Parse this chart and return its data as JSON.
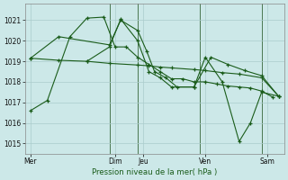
{
  "bg_color": "#cce8e8",
  "grid_color": "#aacccc",
  "line_color": "#1a5c1a",
  "title_label": "Pression niveau de la mer( hPa )",
  "x_ticks_labels": [
    "Mer",
    "Dim",
    "Jeu",
    "Ven",
    "Sam"
  ],
  "x_ticks_pos": [
    0.5,
    8,
    10.5,
    16,
    21.5
  ],
  "ylim": [
    1014.5,
    1021.8
  ],
  "yticks": [
    1015,
    1016,
    1017,
    1018,
    1019,
    1020,
    1021
  ],
  "xlim": [
    0,
    23
  ],
  "vlines_x": [
    7.5,
    10,
    15.5,
    21
  ],
  "series1_x": [
    0.5,
    2,
    4,
    5.5,
    7,
    8,
    9,
    10,
    11,
    12,
    13,
    14,
    15,
    16,
    17,
    18,
    19,
    20,
    21,
    22
  ],
  "series1_y": [
    1016.6,
    1017.1,
    1020.2,
    1021.1,
    1021.15,
    1019.7,
    1019.7,
    1019.2,
    1018.85,
    1018.5,
    1018.15,
    1018.15,
    1018.0,
    1018.0,
    1017.9,
    1017.8,
    1017.75,
    1017.7,
    1017.55,
    1017.25
  ],
  "series2_x": [
    0.5,
    3,
    5.5,
    7.5,
    10,
    11,
    12,
    13,
    15,
    16,
    17.5,
    19,
    21,
    22.5
  ],
  "series2_y": [
    1019.15,
    1019.05,
    1019.0,
    1018.9,
    1018.82,
    1018.78,
    1018.72,
    1018.68,
    1018.6,
    1018.55,
    1018.45,
    1018.38,
    1018.2,
    1017.3
  ],
  "series3_x": [
    0.5,
    3,
    7.5,
    8.5,
    10,
    10.8,
    11.5,
    12.5,
    13.5,
    15,
    16.5,
    18,
    19.5,
    21,
    22.5
  ],
  "series3_y": [
    1019.15,
    1020.2,
    1019.8,
    1021.0,
    1020.5,
    1019.5,
    1018.5,
    1018.2,
    1017.75,
    1017.75,
    1019.2,
    1018.85,
    1018.55,
    1018.3,
    1017.3
  ],
  "series4_x": [
    5.5,
    7.5,
    8.5,
    10,
    11,
    12,
    13,
    15,
    16,
    17.5,
    19,
    20,
    21,
    22.5
  ],
  "series4_y": [
    1019.0,
    1019.7,
    1021.05,
    1020.0,
    1018.5,
    1018.2,
    1017.75,
    1017.75,
    1019.2,
    1018.0,
    1015.1,
    1016.0,
    1017.5,
    1017.3
  ]
}
